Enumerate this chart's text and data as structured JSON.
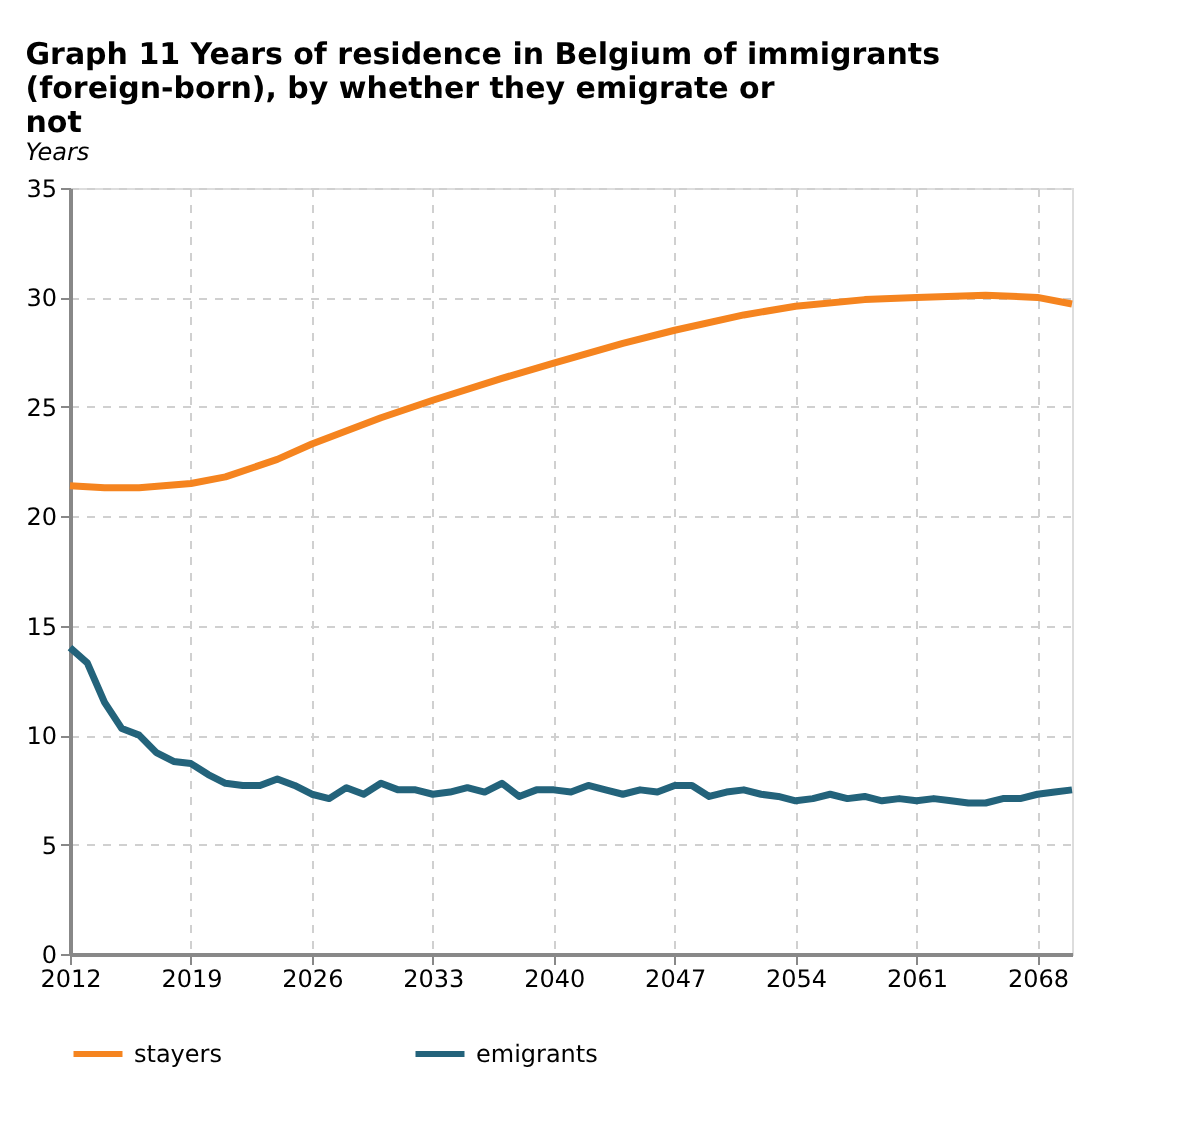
{
  "chart_data": {
    "type": "line",
    "title": [
      "Graph 11    Years of residence in Belgium of immigrants",
      "                  (foreign-born), by whether they emigrate or",
      "                  not"
    ],
    "subtitle": "Years",
    "xlim": [
      2012,
      2070
    ],
    "xticks": [
      2012,
      2019,
      2026,
      2033,
      2040,
      2047,
      2054,
      2061,
      2068
    ],
    "ylim": [
      0,
      35
    ],
    "yticks": [
      0,
      5,
      10,
      15,
      20,
      25,
      30,
      35
    ],
    "grid": true,
    "legend": "bottom",
    "marker": "none",
    "line_style": "solid",
    "series": [
      {
        "name": "stayers",
        "color": "#f5841f",
        "x": [
          2012,
          2014,
          2016,
          2019,
          2021,
          2024,
          2026,
          2030,
          2033,
          2037,
          2040,
          2044,
          2047,
          2051,
          2054,
          2058,
          2061,
          2065,
          2068,
          2070
        ],
        "values": [
          21.4,
          21.3,
          21.3,
          21.5,
          21.8,
          22.6,
          23.3,
          24.5,
          25.3,
          26.3,
          27.0,
          27.9,
          28.5,
          29.2,
          29.6,
          29.9,
          30.0,
          30.1,
          30.0,
          29.7
        ]
      },
      {
        "name": "emigrants",
        "color": "#23637b",
        "x": [
          2012,
          2013,
          2014,
          2015,
          2016,
          2017,
          2018,
          2019,
          2020,
          2021,
          2022,
          2023,
          2024,
          2025,
          2026,
          2027,
          2028,
          2029,
          2030,
          2031,
          2032,
          2033,
          2034,
          2035,
          2036,
          2037,
          2038,
          2039,
          2040,
          2041,
          2042,
          2043,
          2044,
          2045,
          2046,
          2047,
          2048,
          2049,
          2050,
          2051,
          2052,
          2053,
          2054,
          2055,
          2056,
          2057,
          2058,
          2059,
          2060,
          2061,
          2062,
          2063,
          2064,
          2065,
          2066,
          2067,
          2068,
          2069,
          2070
        ],
        "values": [
          14.0,
          13.3,
          11.5,
          10.3,
          10.0,
          9.2,
          8.8,
          8.7,
          8.2,
          7.8,
          7.7,
          7.7,
          8.0,
          7.7,
          7.3,
          7.1,
          7.6,
          7.3,
          7.8,
          7.5,
          7.5,
          7.3,
          7.4,
          7.6,
          7.4,
          7.8,
          7.2,
          7.5,
          7.5,
          7.4,
          7.7,
          7.5,
          7.3,
          7.5,
          7.4,
          7.7,
          7.7,
          7.2,
          7.4,
          7.5,
          7.3,
          7.2,
          7.0,
          7.1,
          7.3,
          7.1,
          7.2,
          7.0,
          7.1,
          7.0,
          7.1,
          7.0,
          6.9,
          6.9,
          7.1,
          7.1,
          7.3,
          7.4,
          7.5
        ]
      }
    ]
  }
}
